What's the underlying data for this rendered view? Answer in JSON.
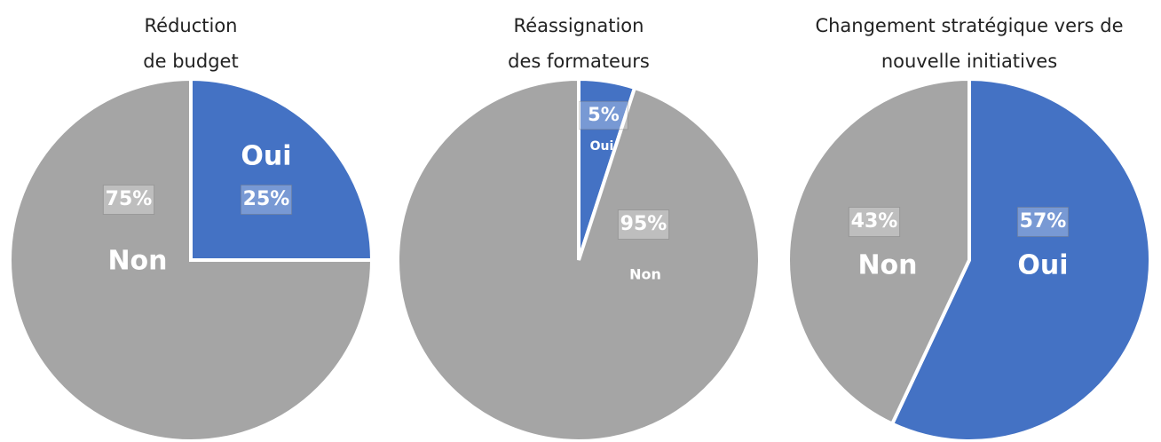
{
  "chart_data": [
    {
      "type": "pie",
      "title": [
        "Réduction",
        "de budget"
      ],
      "categories": [
        "Oui",
        "Non"
      ],
      "values": [
        25,
        75
      ],
      "value_labels": [
        "25%",
        "75%"
      ],
      "colors": [
        "#4472c4",
        "#a5a5a5"
      ]
    },
    {
      "type": "pie",
      "title": [
        "Réassignation",
        "des formateurs"
      ],
      "categories": [
        "Oui",
        "Non"
      ],
      "values": [
        5,
        95
      ],
      "value_labels": [
        "5%",
        "95%"
      ],
      "colors": [
        "#4472c4",
        "#a5a5a5"
      ]
    },
    {
      "type": "pie",
      "title": [
        "Changement stratégique vers de",
        "nouvelle initiatives"
      ],
      "categories": [
        "Oui",
        "Non"
      ],
      "values": [
        57,
        43
      ],
      "value_labels": [
        "57%",
        "43%"
      ],
      "colors": [
        "#4472c4",
        "#a5a5a5"
      ]
    }
  ]
}
